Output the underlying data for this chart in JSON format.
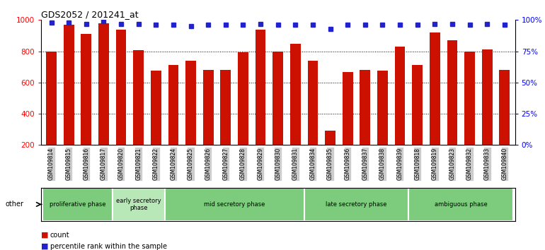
{
  "title": "GDS2052 / 201241_at",
  "samples": [
    "GSM109814",
    "GSM109815",
    "GSM109816",
    "GSM109817",
    "GSM109820",
    "GSM109821",
    "GSM109822",
    "GSM109824",
    "GSM109825",
    "GSM109826",
    "GSM109827",
    "GSM109828",
    "GSM109829",
    "GSM109830",
    "GSM109831",
    "GSM109834",
    "GSM109835",
    "GSM109836",
    "GSM109837",
    "GSM109838",
    "GSM109839",
    "GSM109818",
    "GSM109819",
    "GSM109823",
    "GSM109832",
    "GSM109833",
    "GSM109840"
  ],
  "counts": [
    800,
    970,
    910,
    980,
    940,
    805,
    675,
    710,
    740,
    680,
    680,
    795,
    940,
    800,
    850,
    740,
    290,
    665,
    680,
    675,
    830,
    710,
    920,
    870,
    800,
    810,
    680
  ],
  "percentile_ranks": [
    98,
    98,
    97,
    99,
    97,
    97,
    96,
    96,
    95,
    96,
    96,
    96,
    97,
    96,
    96,
    96,
    93,
    96,
    96,
    96,
    96,
    96,
    97,
    97,
    96,
    97,
    96
  ],
  "phases": [
    {
      "label": "proliferative phase",
      "start": 0,
      "end": 4,
      "color": "#7dcc7d"
    },
    {
      "label": "early secretory\nphase",
      "start": 4,
      "end": 7,
      "color": "#b8e8b8"
    },
    {
      "label": "mid secretory phase",
      "start": 7,
      "end": 15,
      "color": "#7dcc7d"
    },
    {
      "label": "late secretory phase",
      "start": 15,
      "end": 21,
      "color": "#7dcc7d"
    },
    {
      "label": "ambiguous phase",
      "start": 21,
      "end": 27,
      "color": "#7dcc7d"
    }
  ],
  "bar_color": "#cc1100",
  "dot_color": "#2222cc",
  "ymin": 200,
  "ymax": 1000,
  "yticks_left": [
    200,
    400,
    600,
    800,
    1000
  ],
  "y2min": 0,
  "y2max": 100,
  "yticks_right": [
    0,
    25,
    50,
    75,
    100
  ],
  "grid_lines": [
    400,
    600,
    800
  ]
}
